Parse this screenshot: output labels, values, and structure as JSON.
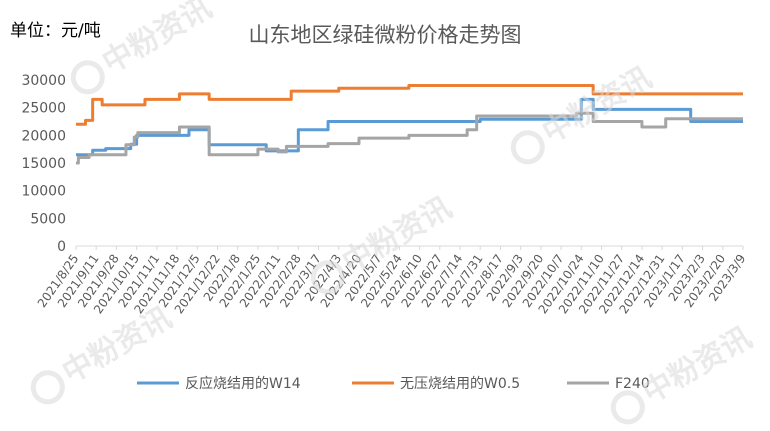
{
  "unit_label": "单位：元/吨",
  "chart_data": {
    "type": "line",
    "title": "山东地区绿硅微粉价格走势图",
    "xlabel": "",
    "ylabel": "",
    "ylim": [
      0,
      30000
    ],
    "yticks": [
      0,
      5000,
      10000,
      15000,
      20000,
      25000,
      30000
    ],
    "legend_position": "bottom",
    "grid": false,
    "x_tick_labels": [
      "2021/8/25",
      "2021/9/11",
      "2021/9/28",
      "2021/10/15",
      "2021/11/1",
      "2021/11/18",
      "2021/12/5",
      "2021/12/22",
      "2022/1/8",
      "2022/1/25",
      "2022/2/11",
      "2022/2/28",
      "2022/3/17",
      "2022/4/3",
      "2022/4/20",
      "2022/5/7",
      "2022/5/24",
      "2022/6/10",
      "2022/6/27",
      "2022/7/14",
      "2022/7/31",
      "2022/8/17",
      "2022/9/3",
      "2022/9/20",
      "2022/10/7",
      "2022/10/24",
      "2022/11/10",
      "2022/11/27",
      "2022/12/14",
      "2022/12/31",
      "2023/1/17",
      "2023/2/3",
      "2023/2/20",
      "2023/3/9"
    ],
    "series": [
      {
        "name": "反应烧结用的W14",
        "color": "#5b9bd5",
        "points": [
          [
            "2021/8/25",
            16500
          ],
          [
            "2021/9/8",
            16500
          ],
          [
            "2021/9/8",
            17300
          ],
          [
            "2021/9/19",
            17300
          ],
          [
            "2021/9/19",
            17600
          ],
          [
            "2021/10/10",
            17600
          ],
          [
            "2021/10/10",
            18400
          ],
          [
            "2021/10/15",
            18400
          ],
          [
            "2021/10/15",
            20000
          ],
          [
            "2021/11/28",
            20000
          ],
          [
            "2021/11/28",
            21000
          ],
          [
            "2021/12/15",
            21000
          ],
          [
            "2021/12/15",
            18300
          ],
          [
            "2022/2/1",
            18300
          ],
          [
            "2022/2/1",
            17200
          ],
          [
            "2022/2/28",
            17200
          ],
          [
            "2022/2/28",
            21000
          ],
          [
            "2022/3/25",
            21000
          ],
          [
            "2022/3/25",
            22500
          ],
          [
            "2022/7/31",
            22500
          ],
          [
            "2022/7/31",
            22900
          ],
          [
            "2022/10/24",
            22900
          ],
          [
            "2022/10/24",
            26500
          ],
          [
            "2022/11/3",
            26500
          ],
          [
            "2022/11/3",
            24700
          ],
          [
            "2023/1/24",
            24700
          ],
          [
            "2023/1/24",
            22500
          ],
          [
            "2023/3/9",
            22500
          ]
        ]
      },
      {
        "name": "无压烧结用的W0.5",
        "color": "#ed7d31",
        "points": [
          [
            "2021/8/25",
            22000
          ],
          [
            "2021/9/2",
            22000
          ],
          [
            "2021/9/2",
            22700
          ],
          [
            "2021/9/8",
            22700
          ],
          [
            "2021/9/8",
            26500
          ],
          [
            "2021/9/16",
            26500
          ],
          [
            "2021/9/16",
            25500
          ],
          [
            "2021/10/22",
            25500
          ],
          [
            "2021/10/22",
            26500
          ],
          [
            "2021/11/20",
            26500
          ],
          [
            "2021/11/20",
            27500
          ],
          [
            "2021/12/15",
            27500
          ],
          [
            "2021/12/15",
            26500
          ],
          [
            "2022/2/22",
            26500
          ],
          [
            "2022/2/22",
            28000
          ],
          [
            "2022/4/3",
            28000
          ],
          [
            "2022/4/3",
            28500
          ],
          [
            "2022/6/1",
            28500
          ],
          [
            "2022/6/1",
            29000
          ],
          [
            "2022/11/3",
            29000
          ],
          [
            "2022/11/3",
            27500
          ],
          [
            "2023/3/9",
            27500
          ]
        ]
      },
      {
        "name": "F240",
        "color": "#a5a5a5",
        "points": [
          [
            "2021/8/25",
            15000
          ],
          [
            "2021/8/27",
            15000
          ],
          [
            "2021/8/27",
            16000
          ],
          [
            "2021/9/5",
            16000
          ],
          [
            "2021/9/5",
            16500
          ],
          [
            "2021/10/6",
            16500
          ],
          [
            "2021/10/6",
            18300
          ],
          [
            "2021/10/13",
            18300
          ],
          [
            "2021/10/13",
            19700
          ],
          [
            "2021/10/16",
            19700
          ],
          [
            "2021/10/16",
            20500
          ],
          [
            "2021/11/20",
            20500
          ],
          [
            "2021/11/20",
            21500
          ],
          [
            "2021/12/15",
            21500
          ],
          [
            "2021/12/15",
            16500
          ],
          [
            "2022/1/25",
            16500
          ],
          [
            "2022/1/25",
            17500
          ],
          [
            "2022/2/11",
            17500
          ],
          [
            "2022/2/11",
            17000
          ],
          [
            "2022/2/18",
            17000
          ],
          [
            "2022/2/18",
            18000
          ],
          [
            "2022/3/25",
            18000
          ],
          [
            "2022/3/25",
            18500
          ],
          [
            "2022/4/20",
            18500
          ],
          [
            "2022/4/20",
            19500
          ],
          [
            "2022/6/1",
            19500
          ],
          [
            "2022/6/1",
            20000
          ],
          [
            "2022/7/20",
            20000
          ],
          [
            "2022/7/20",
            21000
          ],
          [
            "2022/7/28",
            21000
          ],
          [
            "2022/7/28",
            23500
          ],
          [
            "2022/10/20",
            23500
          ],
          [
            "2022/10/20",
            24000
          ],
          [
            "2022/11/3",
            24000
          ],
          [
            "2022/11/3",
            22500
          ],
          [
            "2022/12/14",
            22500
          ],
          [
            "2022/12/14",
            21500
          ],
          [
            "2023/1/3",
            21500
          ],
          [
            "2023/1/3",
            23000
          ],
          [
            "2023/3/9",
            23000
          ]
        ]
      }
    ]
  },
  "watermark": {
    "text": "中粉资讯"
  }
}
